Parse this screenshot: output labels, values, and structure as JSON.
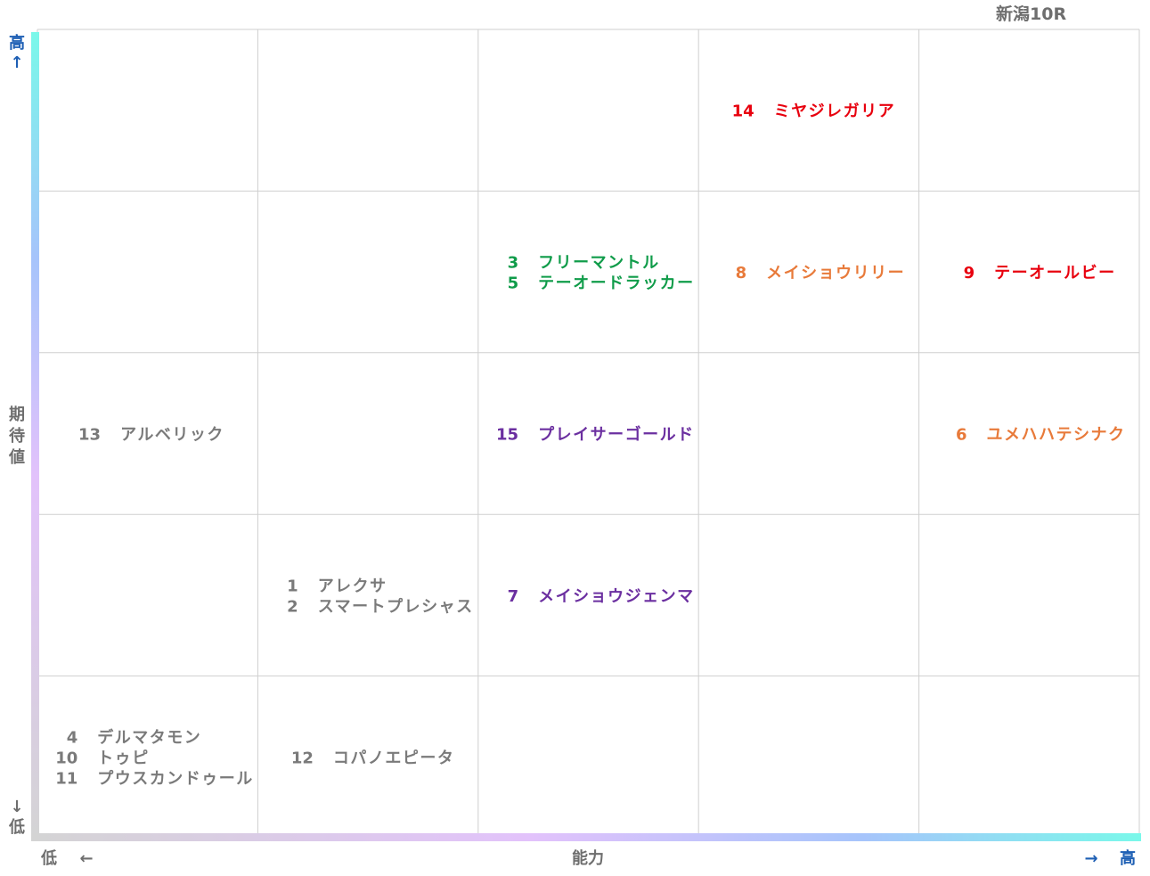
{
  "chart_data": {
    "type": "table",
    "race": "新潟10R",
    "y_axis": {
      "label": [
        "期",
        "待",
        "値"
      ],
      "high": "高",
      "low": "低",
      "high_arrow": "↑",
      "low_arrow": "↓"
    },
    "x_axis": {
      "label": "能力",
      "high": "高",
      "low": "低",
      "high_arrow": "→",
      "low_arrow": "←"
    },
    "grid": {
      "rows": 5,
      "cols": 5
    },
    "colors": {
      "red": "#e8000e",
      "orange": "#e87a3a",
      "green": "#109c4a",
      "purple": "#6b2fa0",
      "gray": "#7a7a7a",
      "axis_label": "#6e6e6e",
      "arrow": "#1e5fb4"
    },
    "horses": [
      {
        "cell": [
          0,
          3
        ],
        "color": "red",
        "entries": [
          {
            "num": "14",
            "name": "ミヤジレガリア"
          }
        ]
      },
      {
        "cell": [
          1,
          2
        ],
        "color": "green",
        "entries": [
          {
            "num": "3",
            "name": "フリーマントル"
          },
          {
            "num": "5",
            "name": "テーオードラッカー"
          }
        ]
      },
      {
        "cell": [
          1,
          3
        ],
        "color": "orange",
        "entries": [
          {
            "num": "8",
            "name": "メイショウリリー"
          }
        ]
      },
      {
        "cell": [
          1,
          4
        ],
        "color": "red",
        "entries": [
          {
            "num": "9",
            "name": "テーオールビー"
          }
        ]
      },
      {
        "cell": [
          2,
          0
        ],
        "color": "gray",
        "entries": [
          {
            "num": "13",
            "name": "アルベリック"
          }
        ]
      },
      {
        "cell": [
          2,
          2
        ],
        "color": "purple",
        "entries": [
          {
            "num": "15",
            "name": "プレイサーゴールド"
          }
        ]
      },
      {
        "cell": [
          2,
          4
        ],
        "color": "orange",
        "entries": [
          {
            "num": "6",
            "name": "ユメハハテシナク"
          }
        ]
      },
      {
        "cell": [
          3,
          1
        ],
        "color": "gray",
        "entries": [
          {
            "num": "1",
            "name": "アレクサ"
          },
          {
            "num": "2",
            "name": "スマートプレシャス"
          }
        ]
      },
      {
        "cell": [
          3,
          2
        ],
        "color": "purple",
        "entries": [
          {
            "num": "7",
            "name": "メイショウジェンマ"
          }
        ]
      },
      {
        "cell": [
          4,
          0
        ],
        "color": "gray",
        "entries": [
          {
            "num": "4",
            "name": "デルマタモン"
          },
          {
            "num": "10",
            "name": "トゥピ"
          },
          {
            "num": "11",
            "name": "プウスカンドゥール"
          }
        ]
      },
      {
        "cell": [
          4,
          1
        ],
        "color": "gray",
        "entries": [
          {
            "num": "12",
            "name": "コパノエピータ"
          }
        ]
      }
    ]
  }
}
